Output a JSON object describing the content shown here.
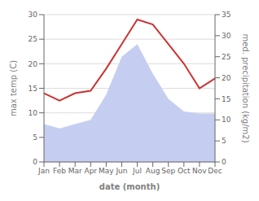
{
  "chart_data": {
    "type": "line",
    "xlabel": "date (month)",
    "ylabel": "max temp (C)",
    "y2label": "med. precipitation (kg/m2)",
    "categories": [
      "Jan",
      "Feb",
      "Mar",
      "Apr",
      "May",
      "Jun",
      "Jul",
      "Aug",
      "Sep",
      "Oct",
      "Nov",
      "Dec"
    ],
    "series": [
      {
        "type": "area",
        "color": "#c5cef0",
        "axis": "y2",
        "values": [
          9.0,
          8.0,
          9.0,
          10.0,
          16.0,
          25.0,
          28.0,
          21.0,
          15.0,
          12.0,
          11.5,
          11.5
        ]
      },
      {
        "type": "line",
        "color": "#cc3333",
        "values": [
          14.0,
          12.5,
          14.0,
          14.5,
          19.0,
          24.0,
          29.0,
          28.0,
          24.0,
          20.0,
          15.0,
          17.0
        ]
      }
    ],
    "ylim": [
      0,
      30
    ],
    "yticks": [
      0,
      5,
      10,
      15,
      20,
      25,
      30
    ],
    "y2lim": [
      0,
      35
    ],
    "y2ticks": [
      0,
      5,
      10,
      15,
      20,
      25,
      30,
      35
    ],
    "grid": true
  }
}
